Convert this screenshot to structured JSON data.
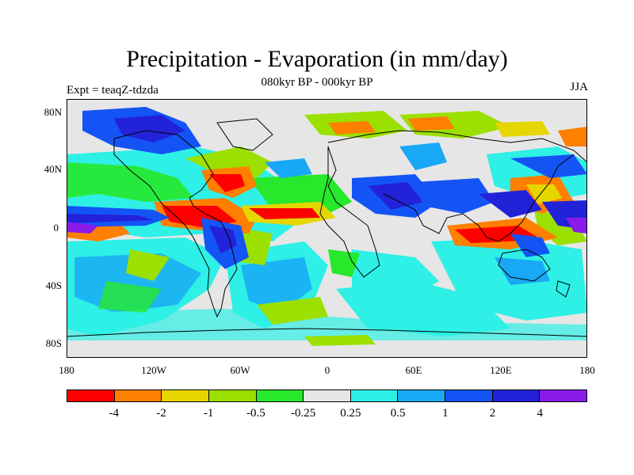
{
  "title": "Precipitation - Evaporation (in mm/day)",
  "subtitle": "080kyr BP - 000kyr BP",
  "experiment": "Expt = teaqZ-tdzda",
  "season": "JJA",
  "map": {
    "projection": "cylindrical equidistant",
    "lon_range": [
      -180,
      180
    ],
    "lat_range": [
      -90,
      90
    ],
    "y_tick_labels": [
      "80N",
      "40N",
      "0",
      "40S",
      "80S"
    ],
    "x_tick_labels": [
      "180",
      "120W",
      "60W",
      "0",
      "60E",
      "120E",
      "180"
    ],
    "background_land_color": "#e4e4e4"
  },
  "colorbar": {
    "colors": [
      "#ff0000",
      "#ff7f00",
      "#e6d600",
      "#9be000",
      "#27e82a",
      "#e6e6e6",
      "#2ef0e6",
      "#18a8f5",
      "#1454f5",
      "#2222d8",
      "#8a1be8"
    ],
    "labels": [
      "-4",
      "-2",
      "-1",
      "-0.5",
      "-0.25",
      "0.25",
      "0.5",
      "1",
      "2",
      "4"
    ]
  }
}
